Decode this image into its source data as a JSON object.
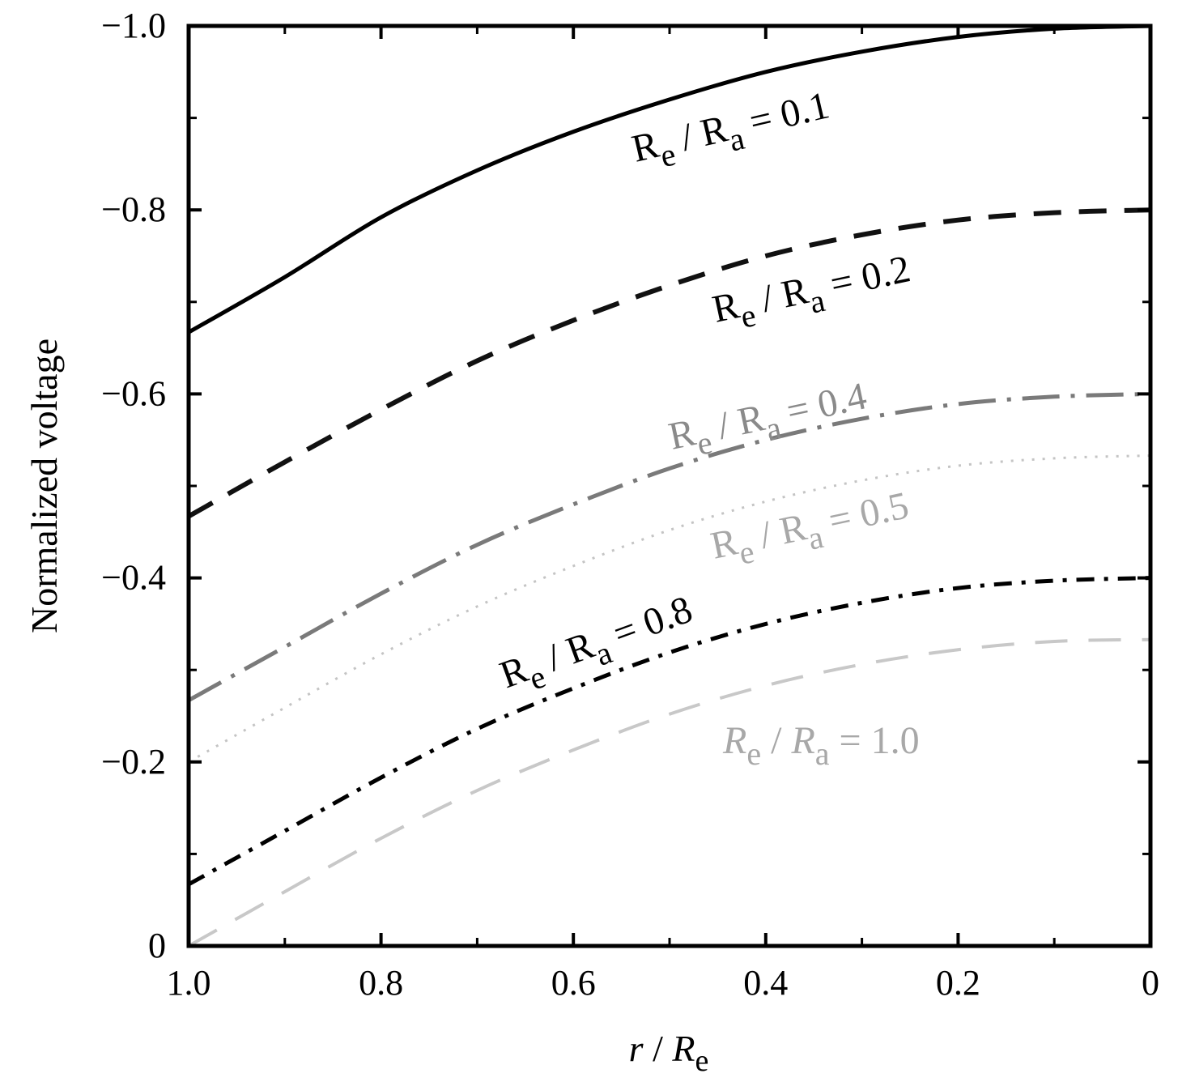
{
  "chart_data": {
    "type": "line",
    "xlabel": {
      "var": "r",
      "slash": " / ",
      "base": "R",
      "sub": "e"
    },
    "ylabel": "Normalized voltage",
    "xlim": [
      1.0,
      0
    ],
    "ylim": [
      0,
      -1.0
    ],
    "x_reversed": true,
    "y_reversed": true,
    "xticks": [
      {
        "value": 1.0,
        "label": "1.0"
      },
      {
        "value": 0.8,
        "label": "0.8"
      },
      {
        "value": 0.6,
        "label": "0.6"
      },
      {
        "value": 0.4,
        "label": "0.4"
      },
      {
        "value": 0.2,
        "label": "0.2"
      },
      {
        "value": 0,
        "label": "0"
      }
    ],
    "yticks": [
      {
        "value": -1.0,
        "label": "−1.0"
      },
      {
        "value": -0.8,
        "label": "−0.8"
      },
      {
        "value": -0.6,
        "label": "−0.6"
      },
      {
        "value": -0.4,
        "label": "−0.4"
      },
      {
        "value": -0.2,
        "label": "−0.2"
      },
      {
        "value": 0,
        "label": "0"
      }
    ],
    "grid": false,
    "series": [
      {
        "name": "Re / Ra = 0.1",
        "label": {
          "b1": "R",
          "s1": "e",
          "mid": " / ",
          "b2": "R",
          "s2": "a",
          "val": " = 0.1",
          "italic": false
        },
        "color": "#000000",
        "style": "solid",
        "x": [
          1.0,
          0.9,
          0.8,
          0.7,
          0.6,
          0.5,
          0.4,
          0.3,
          0.2,
          0.1,
          0
        ],
        "y": [
          -0.667,
          -0.727,
          -0.792,
          -0.843,
          -0.885,
          -0.92,
          -0.95,
          -0.972,
          -0.988,
          -0.997,
          -1.0
        ]
      },
      {
        "name": "Re / Ra = 0.2",
        "label": {
          "b1": "R",
          "s1": "e",
          "mid": " / ",
          "b2": "R",
          "s2": "a",
          "val": " = 0.2",
          "italic": false
        },
        "color": "#111111",
        "style": "dashed",
        "x": [
          1.0,
          0.9,
          0.8,
          0.7,
          0.6,
          0.5,
          0.4,
          0.3,
          0.2,
          0.1,
          0
        ],
        "y": [
          -0.467,
          -0.526,
          -0.583,
          -0.636,
          -0.68,
          -0.718,
          -0.75,
          -0.773,
          -0.789,
          -0.797,
          -0.8
        ]
      },
      {
        "name": "Re / Ra = 0.4",
        "label": {
          "b1": "R",
          "s1": "e",
          "mid": " / ",
          "b2": "R",
          "s2": "a",
          "val": " = 0.4",
          "italic": false
        },
        "color": "#7a7a7a",
        "style": "dashdot-long",
        "x": [
          1.0,
          0.9,
          0.8,
          0.7,
          0.6,
          0.5,
          0.4,
          0.3,
          0.2,
          0.1,
          0
        ],
        "y": [
          -0.267,
          -0.325,
          -0.383,
          -0.436,
          -0.48,
          -0.519,
          -0.55,
          -0.573,
          -0.589,
          -0.597,
          -0.6
        ]
      },
      {
        "name": "Re / Ra = 0.5",
        "label": {
          "b1": "R",
          "s1": "e",
          "mid": " / ",
          "b2": "R",
          "s2": "a",
          "val": " = 0.5",
          "italic": false
        },
        "color": "#c4c4c4",
        "style": "dashdotdot",
        "x": [
          1.0,
          0.9,
          0.8,
          0.7,
          0.6,
          0.5,
          0.4,
          0.3,
          0.2,
          0.1,
          0
        ],
        "y": [
          -0.2,
          -0.259,
          -0.317,
          -0.369,
          -0.413,
          -0.452,
          -0.483,
          -0.506,
          -0.522,
          -0.53,
          -0.533
        ]
      },
      {
        "name": "Re / Ra = 0.8",
        "label": {
          "b1": "R",
          "s1": "e",
          "mid": " / ",
          "b2": "R",
          "s2": "a",
          "val": " = 0.8",
          "italic": false
        },
        "color": "#000000",
        "style": "dashdot",
        "x": [
          1.0,
          0.9,
          0.8,
          0.7,
          0.6,
          0.5,
          0.4,
          0.3,
          0.2,
          0.1,
          0
        ],
        "y": [
          -0.067,
          -0.125,
          -0.183,
          -0.236,
          -0.28,
          -0.319,
          -0.35,
          -0.373,
          -0.389,
          -0.397,
          -0.4
        ]
      },
      {
        "name": "Re / Ra = 1.0",
        "label": {
          "b1": "R",
          "s1": "e",
          "mid": " / ",
          "b2": "R",
          "s2": "a",
          "val": " = 1.0",
          "italic": true
        },
        "color": "#c8c8c8",
        "style": "dashed-long",
        "x": [
          1.0,
          0.9,
          0.8,
          0.7,
          0.6,
          0.5,
          0.4,
          0.3,
          0.2,
          0.1,
          0
        ],
        "y": [
          0,
          -0.059,
          -0.117,
          -0.169,
          -0.213,
          -0.252,
          -0.283,
          -0.306,
          -0.322,
          -0.331,
          -0.333
        ]
      }
    ]
  }
}
